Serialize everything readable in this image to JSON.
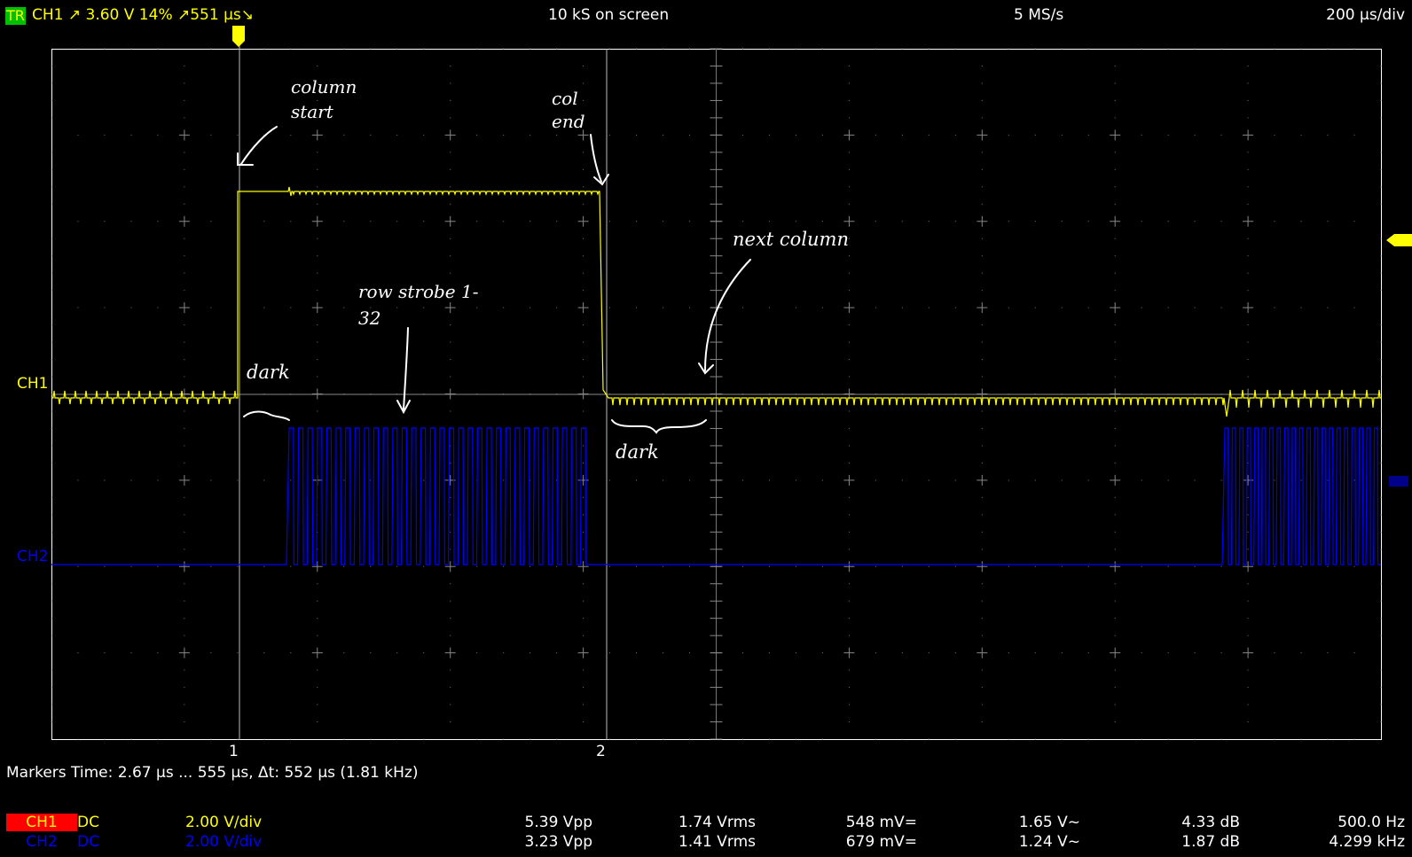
{
  "header": {
    "trigger_badge": "TR",
    "trigger_info": "CH1  ↗  3.60 V  14%  ↗551 µs↘",
    "samples_on_screen": "10 kS on screen",
    "sample_rate": "5 MS/s",
    "timebase": "200 µs/div"
  },
  "channels": {
    "ch1": {
      "label": "CH1",
      "color": "#ffff00"
    },
    "ch2": {
      "label": "CH2",
      "color": "#0000ff"
    }
  },
  "markers": {
    "marker1_label": "1",
    "marker2_label": "2",
    "summary": "Markers  Time: 2.67 µs ... 555 µs,  Δt: 552 µs (1.81 kHz)"
  },
  "annotations": {
    "column_start": "column start",
    "col_end": "col end",
    "next_column": "next column",
    "row_strobe": "row strobe 1-32",
    "dark": "dark"
  },
  "measurements": [
    {
      "name": "CH1",
      "coupling": "DC",
      "vdiv": "2.00 V/div",
      "vpp": "5.39 Vpp",
      "vrms": "1.74 Vrms",
      "vdc": "548 mV=",
      "vac": "1.65 V~",
      "db": "4.33 dB",
      "freq": "500.0 Hz"
    },
    {
      "name": "CH2",
      "coupling": "DC",
      "vdiv": "2.00 V/div",
      "vpp": "3.23 Vpp",
      "vrms": "1.41 Vrms",
      "vdc": "679 mV=",
      "vac": "1.24 V~",
      "db": "1.87 dB",
      "freq": "4.299 kHz"
    }
  ]
}
